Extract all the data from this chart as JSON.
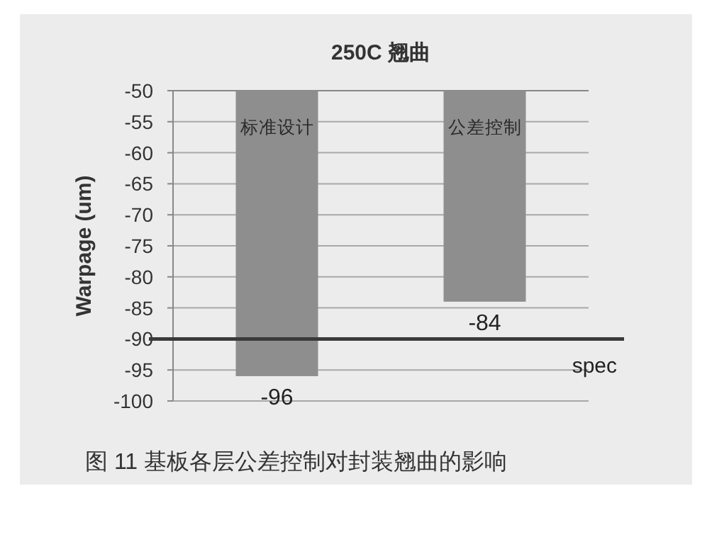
{
  "chart_data": {
    "type": "bar",
    "title": "250C 翘曲",
    "ylabel": "Warpage (um)",
    "categories": [
      "标准设计",
      "公差控制"
    ],
    "series": [
      {
        "color": "#8e8e8e",
        "values": [
          -96,
          -84
        ]
      }
    ],
    "ylim": [
      -100,
      -50
    ],
    "yticks": [
      -100,
      -95,
      -90,
      -85,
      -80,
      -75,
      -70,
      -65,
      -60,
      -55,
      -50
    ],
    "grid": "y",
    "data_labels": true,
    "ref_lines": [
      {
        "axis": "y",
        "value": -90,
        "label": "spec",
        "color": "#3a3a3a",
        "line_style": "solid"
      }
    ],
    "annotations": [
      "图 11 基板各层公差控制对封装翘曲的影响"
    ]
  }
}
